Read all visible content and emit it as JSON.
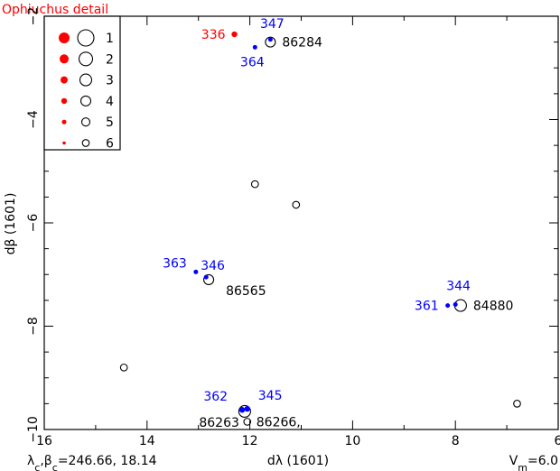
{
  "chart_data": {
    "type": "scatter",
    "title": "Ophiuchus detail",
    "xlabel": "dλ (1601)",
    "ylabel": "dβ (1601)",
    "xlim": [
      16,
      6
    ],
    "ylim": [
      -10,
      -2
    ],
    "x_ticks": [
      16,
      14,
      12,
      10,
      8,
      6
    ],
    "y_ticks": [
      -10,
      -8,
      -6,
      -4,
      -2
    ],
    "x_tick_labels": [
      "16",
      "14",
      "12",
      "10",
      "8",
      "6"
    ],
    "y_tick_labels": [
      "−10",
      "−8",
      "−6",
      "−4",
      "−2"
    ],
    "grid": false,
    "legend_position": "top-left",
    "legend": [
      {
        "label": "1",
        "rank": 1
      },
      {
        "label": "2",
        "rank": 2
      },
      {
        "label": "3",
        "rank": 3
      },
      {
        "label": "4",
        "rank": 4
      },
      {
        "label": "5",
        "rank": 5
      },
      {
        "label": "6",
        "rank": 6
      }
    ],
    "colors": {
      "red": "#ff0000",
      "blue": "#0000ff",
      "black": "#000000"
    },
    "series": [
      {
        "marker": "open-circle",
        "color": "#000000",
        "points": [
          {
            "x": 11.6,
            "y": -2.5,
            "rank": 4,
            "label": "86284"
          },
          {
            "x": 12.8,
            "y": -7.1,
            "rank": 4,
            "label": "86565"
          },
          {
            "x": 7.9,
            "y": -7.6,
            "rank": 3,
            "label": "84880"
          },
          {
            "x": 12.1,
            "y": -9.65,
            "rank": 3,
            "label": "86263"
          },
          {
            "x": 12.05,
            "y": -9.85,
            "rank": 6,
            "label": "86266,"
          },
          {
            "x": 11.9,
            "y": -5.25,
            "rank": 6,
            "label": ""
          },
          {
            "x": 11.1,
            "y": -5.65,
            "rank": 6,
            "label": ""
          },
          {
            "x": 14.45,
            "y": -8.8,
            "rank": 6,
            "label": ""
          },
          {
            "x": 6.8,
            "y": -9.5,
            "rank": 6,
            "label": ""
          }
        ]
      },
      {
        "marker": "filled-circle",
        "color": "#0000ff",
        "points": [
          {
            "x": 11.6,
            "y": -2.45,
            "rank": 5,
            "label": "347"
          },
          {
            "x": 11.9,
            "y": -2.6,
            "rank": 5,
            "label": "364"
          },
          {
            "x": 12.85,
            "y": -7.05,
            "rank": 5,
            "label": "346"
          },
          {
            "x": 13.05,
            "y": -6.95,
            "rank": 5,
            "label": "363"
          },
          {
            "x": 8.0,
            "y": -7.58,
            "rank": 5,
            "label": "344"
          },
          {
            "x": 8.15,
            "y": -7.6,
            "rank": 5,
            "label": "361"
          },
          {
            "x": 12.05,
            "y": -9.6,
            "rank": 4,
            "label": "345"
          },
          {
            "x": 12.15,
            "y": -9.62,
            "rank": 4,
            "label": "362"
          }
        ]
      },
      {
        "marker": "filled-circle",
        "color": "#ff0000",
        "points": [
          {
            "x": 12.3,
            "y": -2.35,
            "rank": 4,
            "label": "336"
          }
        ]
      }
    ],
    "footer_left": "λ_c,β_c=246.66, 18.14",
    "footer_right": "V_m=6.0"
  }
}
